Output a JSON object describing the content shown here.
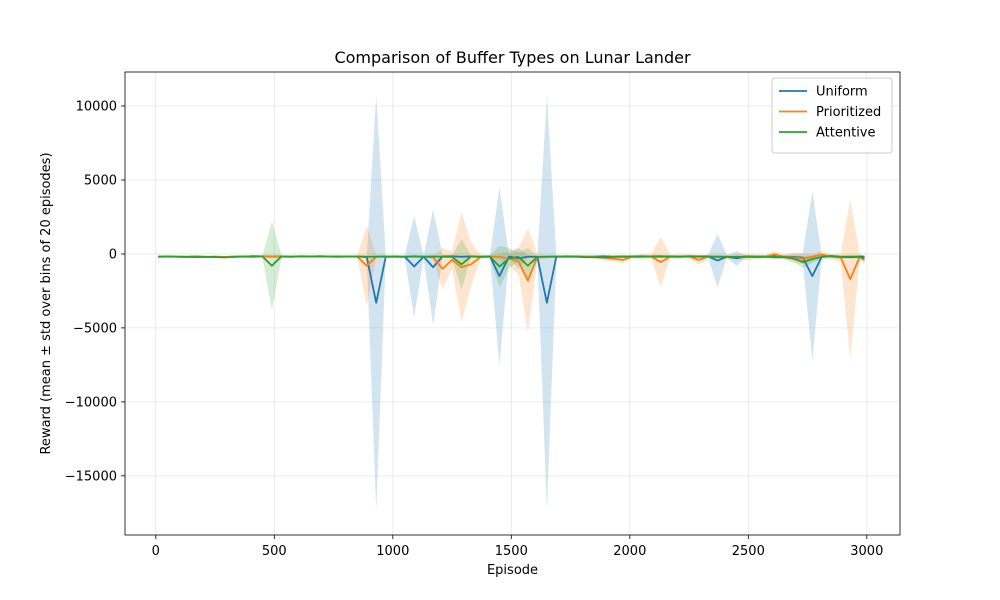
{
  "chart_data": {
    "type": "line",
    "title": "Comparison of Buffer Types on Lunar Lander",
    "xlabel": "Episode",
    "ylabel": "Reward (mean ± std over bins of 20 episodes)",
    "xlim": [
      -130,
      3140
    ],
    "ylim": [
      -19000,
      12300
    ],
    "xticks": [
      0,
      500,
      1000,
      1500,
      2000,
      2500,
      3000
    ],
    "xtick_labels": [
      "0",
      "500",
      "1000",
      "1500",
      "2000",
      "2500",
      "3000"
    ],
    "yticks": [
      -15000,
      -10000,
      -5000,
      0,
      5000,
      10000
    ],
    "ytick_labels": [
      "−15000",
      "−10000",
      "−5000",
      "0",
      "5000",
      "10000"
    ],
    "grid": true,
    "legend_position": "top-right",
    "x": [
      10,
      50,
      90,
      130,
      170,
      210,
      250,
      290,
      330,
      370,
      410,
      450,
      490,
      530,
      570,
      610,
      650,
      690,
      730,
      770,
      810,
      850,
      890,
      930,
      970,
      1010,
      1050,
      1090,
      1130,
      1170,
      1210,
      1250,
      1290,
      1330,
      1370,
      1410,
      1450,
      1490,
      1530,
      1570,
      1610,
      1650,
      1690,
      1730,
      1770,
      1810,
      1850,
      1890,
      1930,
      1970,
      2010,
      2050,
      2090,
      2130,
      2170,
      2210,
      2250,
      2290,
      2330,
      2370,
      2410,
      2450,
      2490,
      2530,
      2570,
      2610,
      2650,
      2690,
      2730,
      2770,
      2810,
      2850,
      2890,
      2930,
      2970,
      2990
    ],
    "series": [
      {
        "name": "Uniform",
        "color": "#1f77b4",
        "mean": [
          -180,
          -170,
          -180,
          -190,
          -170,
          -200,
          -190,
          -210,
          -180,
          -170,
          -190,
          -160,
          -180,
          -170,
          -190,
          -170,
          -180,
          -160,
          -170,
          -190,
          -170,
          -180,
          -200,
          -3300,
          -200,
          -170,
          -180,
          -850,
          -180,
          -900,
          -170,
          -160,
          -190,
          -170,
          -180,
          -170,
          -1500,
          -170,
          -300,
          -180,
          -190,
          -3300,
          -180,
          -160,
          -170,
          -190,
          -180,
          -160,
          -180,
          -170,
          -190,
          -180,
          -170,
          -160,
          -180,
          -190,
          -170,
          -180,
          -160,
          -450,
          -180,
          -300,
          -170,
          -190,
          -180,
          -170,
          -190,
          -200,
          -250,
          -1500,
          -180,
          -150,
          -200,
          -220,
          -180,
          -190
        ],
        "std": [
          60,
          50,
          60,
          70,
          60,
          70,
          80,
          70,
          60,
          70,
          80,
          60,
          70,
          60,
          80,
          60,
          70,
          60,
          70,
          60,
          70,
          60,
          90,
          14000,
          90,
          80,
          70,
          3400,
          70,
          3900,
          80,
          70,
          80,
          80,
          70,
          80,
          6000,
          90,
          700,
          80,
          80,
          14000,
          80,
          70,
          80,
          90,
          80,
          70,
          80,
          80,
          90,
          80,
          80,
          70,
          90,
          90,
          80,
          90,
          80,
          1800,
          80,
          500,
          80,
          90,
          70,
          80,
          90,
          200,
          300,
          5700,
          80,
          80,
          90,
          90,
          90,
          80
        ]
      },
      {
        "name": "Prioritized",
        "color": "#ff7f0e",
        "mean": [
          -200,
          -180,
          -190,
          -200,
          -180,
          -210,
          -190,
          -200,
          -190,
          -180,
          -200,
          -170,
          -190,
          -180,
          -190,
          -170,
          -180,
          -170,
          -180,
          -190,
          -180,
          -180,
          -800,
          -180,
          -190,
          -180,
          -170,
          -190,
          -180,
          -230,
          -1000,
          -400,
          -900,
          -700,
          -200,
          -180,
          -200,
          -300,
          -500,
          -1800,
          -200,
          -190,
          -170,
          -180,
          -170,
          -190,
          -200,
          -260,
          -320,
          -400,
          -190,
          -200,
          -170,
          -550,
          -190,
          -180,
          -160,
          -400,
          -180,
          -170,
          -200,
          -180,
          -220,
          -190,
          -180,
          -30,
          -190,
          -240,
          -320,
          -200,
          -30,
          -200,
          -250,
          -1700,
          -200,
          -400
        ],
        "std": [
          70,
          60,
          60,
          70,
          60,
          70,
          60,
          70,
          60,
          60,
          70,
          60,
          70,
          60,
          70,
          60,
          70,
          60,
          70,
          70,
          70,
          70,
          2700,
          100,
          80,
          80,
          70,
          80,
          70,
          120,
          1400,
          600,
          3700,
          1500,
          150,
          100,
          200,
          500,
          900,
          3500,
          200,
          120,
          90,
          80,
          90,
          90,
          100,
          160,
          180,
          200,
          100,
          200,
          150,
          1700,
          120,
          150,
          160,
          320,
          130,
          140,
          150,
          160,
          200,
          150,
          130,
          230,
          180,
          350,
          360,
          200,
          200,
          200,
          250,
          5400,
          200,
          300
        ]
      },
      {
        "name": "Attentive",
        "color": "#2ca02c",
        "mean": [
          -190,
          -170,
          -190,
          -200,
          -210,
          -190,
          -210,
          -230,
          -200,
          -180,
          -150,
          -170,
          -800,
          -160,
          -180,
          -160,
          -170,
          -160,
          -180,
          -170,
          -180,
          -170,
          -190,
          -180,
          -170,
          -190,
          -200,
          -160,
          -180,
          -170,
          -190,
          -200,
          -700,
          -170,
          -200,
          -180,
          -850,
          -300,
          -200,
          -800,
          -200,
          -190,
          -180,
          -190,
          -180,
          -210,
          -220,
          -230,
          -200,
          -190,
          -170,
          -160,
          -180,
          -190,
          -170,
          -180,
          -160,
          -170,
          -180,
          -200,
          -190,
          -210,
          -180,
          -200,
          -190,
          -220,
          -210,
          -300,
          -550,
          -350,
          -200,
          -140,
          -200,
          -180,
          -200,
          -300
        ],
        "std": [
          60,
          50,
          60,
          70,
          70,
          60,
          70,
          80,
          70,
          60,
          80,
          60,
          3000,
          60,
          70,
          60,
          70,
          60,
          60,
          70,
          60,
          70,
          80,
          70,
          60,
          70,
          80,
          70,
          60,
          70,
          80,
          70,
          1700,
          70,
          80,
          70,
          1400,
          700,
          300,
          1200,
          90,
          80,
          70,
          80,
          70,
          90,
          80,
          100,
          90,
          80,
          70,
          60,
          80,
          90,
          70,
          80,
          60,
          70,
          80,
          90,
          80,
          100,
          90,
          120,
          100,
          150,
          120,
          200,
          400,
          250,
          150,
          100,
          120,
          100,
          150,
          200
        ]
      }
    ]
  }
}
